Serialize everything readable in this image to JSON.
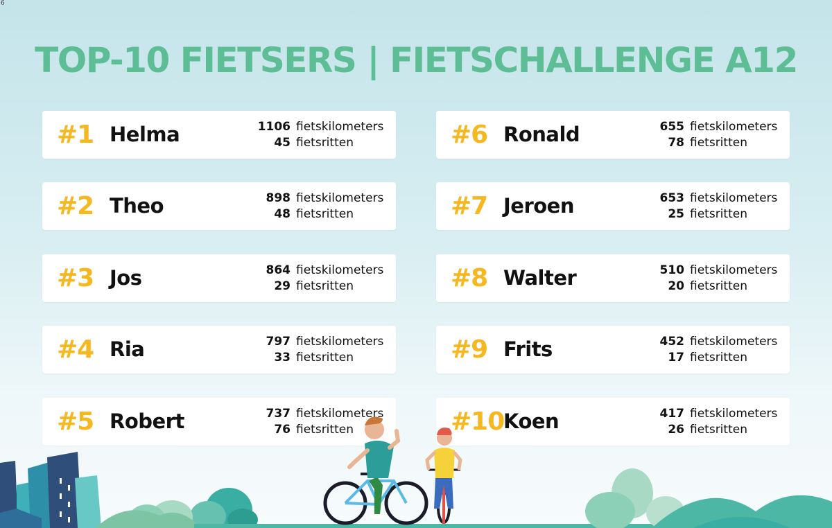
{
  "corner_mark": "6",
  "title": "TOP-10 FIETSERS | FIETSCHALLENGE A12",
  "unit_km": "fietskilometers",
  "unit_rides": "fietsritten",
  "colors": {
    "title": "#5dbd95",
    "rank": "#f5b820",
    "card": "#ffffff"
  },
  "leaderboard": [
    {
      "rank": "#1",
      "name": "Helma",
      "km": "1106",
      "rides": "45"
    },
    {
      "rank": "#2",
      "name": "Theo",
      "km": "898",
      "rides": "48"
    },
    {
      "rank": "#3",
      "name": "Jos",
      "km": "864",
      "rides": "29"
    },
    {
      "rank": "#4",
      "name": "Ria",
      "km": "797",
      "rides": "33"
    },
    {
      "rank": "#5",
      "name": "Robert",
      "km": "737",
      "rides": "76"
    },
    {
      "rank": "#6",
      "name": "Ronald",
      "km": "655",
      "rides": "78"
    },
    {
      "rank": "#7",
      "name": "Jeroen",
      "km": "653",
      "rides": "25"
    },
    {
      "rank": "#8",
      "name": "Walter",
      "km": "510",
      "rides": "20"
    },
    {
      "rank": "#9",
      "name": "Frits",
      "km": "452",
      "rides": "17"
    },
    {
      "rank": "#10",
      "name": "Koen",
      "km": "417",
      "rides": "26"
    }
  ],
  "illustration": {
    "icons": [
      "city-buildings-icon",
      "bush-icon",
      "cyclist-adult-icon",
      "cyclist-child-icon",
      "hills-icon"
    ]
  }
}
